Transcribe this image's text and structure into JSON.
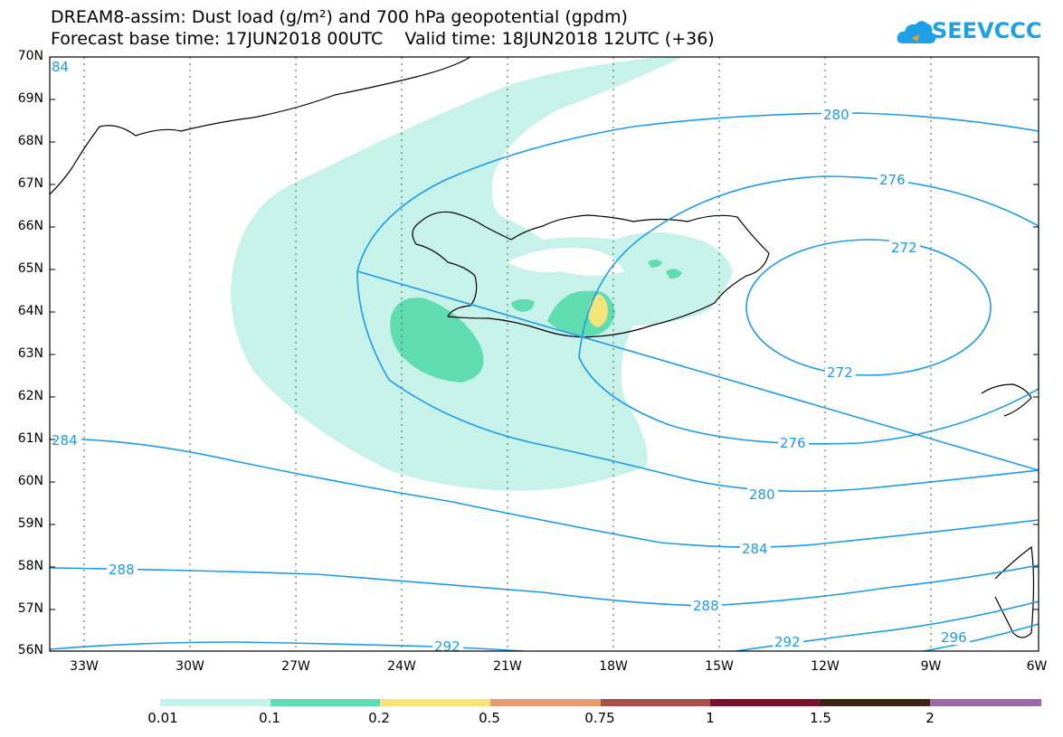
{
  "title_line1": "DREAM8-assim: Dust load (g/m²) and 700 hPa geopotential (gpdm)",
  "title_line2": "Forecast base time: 17JUN2018 00UTC    Valid time: 18JUN2018 12UTC (+36)",
  "logo": {
    "text": "SEEVCCC",
    "icon": "cloud-logo-icon",
    "color": "#1ea0e6"
  },
  "lat_labels": [
    "70N",
    "69N",
    "68N",
    "67N",
    "66N",
    "65N",
    "64N",
    "63N",
    "62N",
    "61N",
    "60N",
    "59N",
    "58N",
    "57N",
    "56N"
  ],
  "lon_labels": [
    "33W",
    "30W",
    "27W",
    "24W",
    "21W",
    "18W",
    "15W",
    "12W",
    "9W",
    "6W"
  ],
  "contour_labels": [
    "280",
    "276",
    "272",
    "272",
    "276",
    "280",
    "284",
    "284",
    "288",
    "288",
    "292",
    "292",
    "296",
    "84"
  ],
  "colorbar": {
    "labels": [
      "0.01",
      "0.1",
      "0.2",
      "0.5",
      "0.75",
      "1",
      "1.5",
      "2"
    ],
    "colors": [
      "#c6f2ea",
      "#5fdcb0",
      "#f5e47a",
      "#e99a70",
      "#a94f48",
      "#7a0f2e",
      "#3a2414",
      "#9b6aa5"
    ]
  },
  "colors": {
    "contour": "#1e9be6",
    "frame": "#000000",
    "dust_light": "#c6f2ea",
    "dust_mid": "#5fdcb0",
    "dust_high": "#f5e47a"
  }
}
